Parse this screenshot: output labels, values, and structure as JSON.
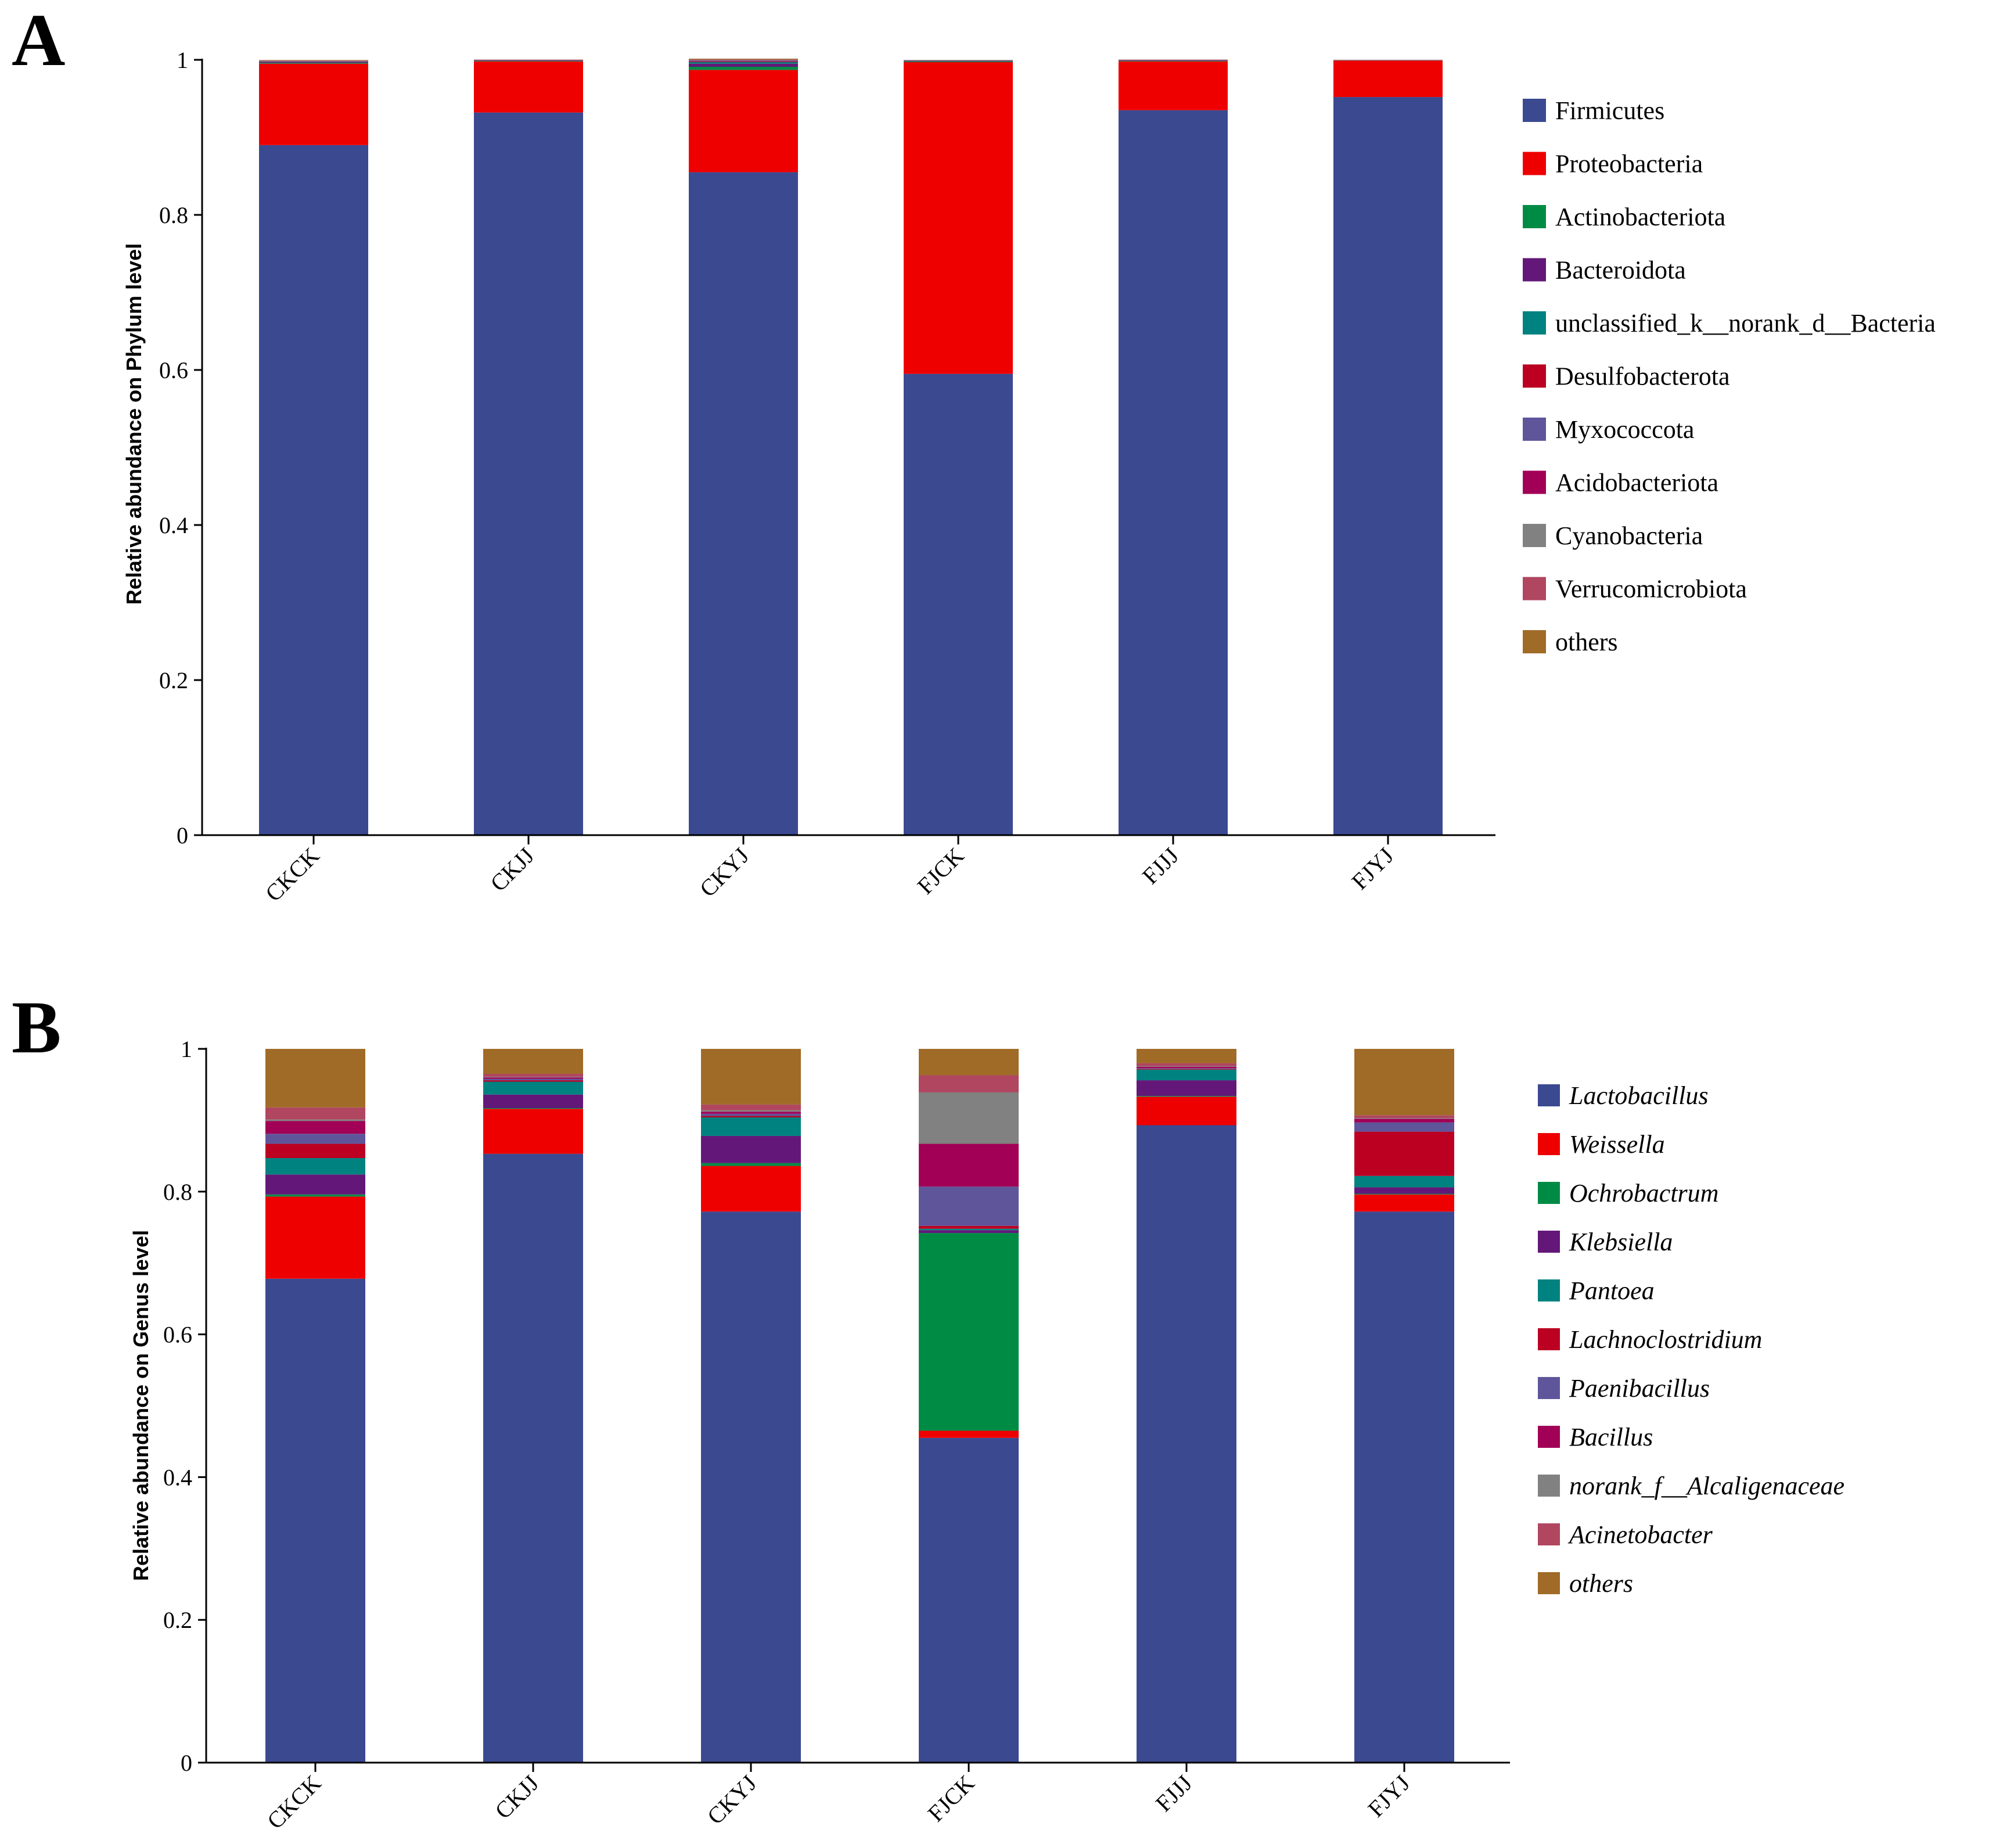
{
  "panels": [
    {
      "letter": "A",
      "legend_italic": false,
      "chart_data": {
        "type": "bar",
        "stacked": true,
        "title": "",
        "xlabel": "",
        "ylabel": "Relative abundance on Phylum level",
        "ylim": [
          0,
          1
        ],
        "yticks": [
          "0",
          "0.2",
          "0.4",
          "0.6",
          "0.8",
          "1"
        ],
        "categories": [
          "CKCK",
          "CKJJ",
          "CKYJ",
          "FJCK",
          "FJJJ",
          "FJYJ"
        ],
        "series": [
          {
            "name": "Firmicutes",
            "color": "#3b4991",
            "values": [
              0.89,
              0.932,
              0.855,
              0.595,
              0.935,
              0.952
            ]
          },
          {
            "name": "Proteobacteria",
            "color": "#ee0000",
            "values": [
              0.105,
              0.066,
              0.132,
              0.402,
              0.063,
              0.047
            ]
          },
          {
            "name": "Actinobacteriota",
            "color": "#008b45",
            "values": [
              0.001,
              0.0005,
              0.004,
              0.001,
              0.0005,
              0.0002
            ]
          },
          {
            "name": "Bacteroidota",
            "color": "#631879",
            "values": [
              0.001,
              0.0005,
              0.004,
              0.0005,
              0.0005,
              0.0002
            ]
          },
          {
            "name": "unclassified_k__norank_d__Bacteria",
            "color": "#008280",
            "values": [
              0.0005,
              0.0003,
              0.002,
              0.0003,
              0.0003,
              0.0001
            ]
          },
          {
            "name": "Desulfobacterota",
            "color": "#bb0021",
            "values": [
              0.0005,
              0.0003,
              0.001,
              0.0003,
              0.0003,
              0.0001
            ]
          },
          {
            "name": "Myxococcota",
            "color": "#5f559b",
            "values": [
              0.0003,
              0.0002,
              0.001,
              0.0002,
              0.0002,
              0.0001
            ]
          },
          {
            "name": "Acidobacteriota",
            "color": "#a20056",
            "values": [
              0.0003,
              0.0002,
              0.0005,
              0.0002,
              0.0002,
              0.0001
            ]
          },
          {
            "name": "Cyanobacteria",
            "color": "#808180",
            "values": [
              0.0004,
              0.0002,
              0.0005,
              0.0002,
              0.0002,
              0.0001
            ]
          },
          {
            "name": "Verrucomicrobiota",
            "color": "#b0465f",
            "values": [
              0.0003,
              0.0001,
              0.0005,
              0.0001,
              0.0001,
              0.0001
            ]
          },
          {
            "name": "others",
            "color": "#a06b27",
            "values": [
              0.0005,
              0.0001,
              0.001,
              0.0001,
              0.0001,
              0.0001
            ]
          }
        ]
      }
    },
    {
      "letter": "B",
      "legend_italic": true,
      "chart_data": {
        "type": "bar",
        "stacked": true,
        "title": "",
        "xlabel": "",
        "ylabel": "Relative abundance on Genus level",
        "ylim": [
          0,
          1
        ],
        "yticks": [
          "0",
          "0.2",
          "0.4",
          "0.6",
          "0.8",
          "1"
        ],
        "categories": [
          "CKCK",
          "CKJJ",
          "CKYJ",
          "FJCK",
          "FJJJ",
          "FJYJ"
        ],
        "series": [
          {
            "name": "Lactobacillus",
            "color": "#3b4991",
            "values": [
              0.678,
              0.853,
              0.772,
              0.455,
              0.893,
              0.772
            ]
          },
          {
            "name": "Weissella",
            "color": "#ee0000",
            "values": [
              0.115,
              0.063,
              0.064,
              0.01,
              0.04,
              0.024
            ]
          },
          {
            "name": "Ochrobactrum",
            "color": "#008b45",
            "values": [
              0.003,
              0.001,
              0.004,
              0.277,
              0.001,
              0.001
            ]
          },
          {
            "name": "Klebsiella",
            "color": "#631879",
            "values": [
              0.028,
              0.019,
              0.038,
              0.004,
              0.022,
              0.009
            ]
          },
          {
            "name": "Pantoea",
            "color": "#008280",
            "values": [
              0.023,
              0.018,
              0.026,
              0.002,
              0.015,
              0.016
            ]
          },
          {
            "name": "Lachnoclostridium",
            "color": "#bb0021",
            "values": [
              0.02,
              0.002,
              0.002,
              0.004,
              0.001,
              0.062
            ]
          },
          {
            "name": "Paenibacillus",
            "color": "#5f559b",
            "values": [
              0.014,
              0.002,
              0.003,
              0.055,
              0.001,
              0.013
            ]
          },
          {
            "name": "Bacillus",
            "color": "#a20056",
            "values": [
              0.018,
              0.002,
              0.003,
              0.06,
              0.002,
              0.005
            ]
          },
          {
            "name": "norank_f__Alcaligenaceae",
            "color": "#808180",
            "values": [
              0.002,
              0.001,
              0.002,
              0.072,
              0.001,
              0.001
            ]
          },
          {
            "name": "Acinetobacter",
            "color": "#b0465f",
            "values": [
              0.017,
              0.004,
              0.008,
              0.024,
              0.004,
              0.004
            ]
          },
          {
            "name": "others",
            "color": "#a06b27",
            "values": [
              0.082,
              0.035,
              0.078,
              0.037,
              0.02,
              0.093
            ]
          }
        ]
      }
    }
  ]
}
